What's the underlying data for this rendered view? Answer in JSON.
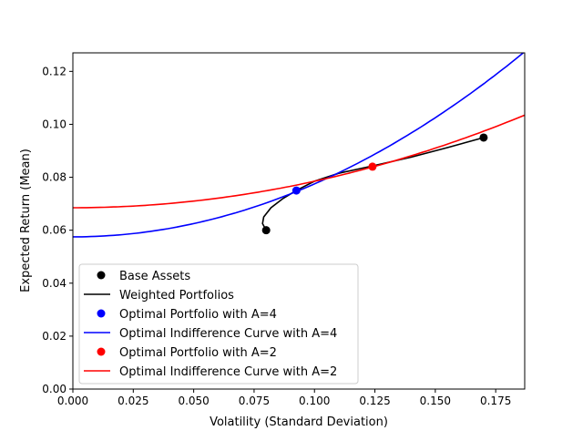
{
  "chart_data": {
    "type": "line",
    "title": "",
    "xlabel": "Volatility (Standard Deviation)",
    "ylabel": "Expected Return (Mean)",
    "xlim": [
      0.0,
      0.187
    ],
    "ylim": [
      0.0,
      0.127
    ],
    "xticks": [
      "0.000",
      "0.025",
      "0.050",
      "0.075",
      "0.100",
      "0.125",
      "0.150",
      "0.175"
    ],
    "yticks": [
      "0.00",
      "0.02",
      "0.04",
      "0.06",
      "0.08",
      "0.10",
      "0.12"
    ],
    "grid": false,
    "legend_position": "lower left",
    "series": [
      {
        "name": "Base Assets",
        "kind": "scatter",
        "color": "#000000",
        "points": [
          [
            0.08,
            0.06
          ],
          [
            0.17,
            0.095
          ]
        ]
      },
      {
        "name": "Weighted Portfolios",
        "kind": "line",
        "color": "#000000",
        "points": [
          [
            0.08,
            0.06
          ],
          [
            0.0785,
            0.0625
          ],
          [
            0.079,
            0.065
          ],
          [
            0.082,
            0.0685
          ],
          [
            0.087,
            0.072
          ],
          [
            0.0925,
            0.075
          ],
          [
            0.1,
            0.0785
          ],
          [
            0.11,
            0.0815
          ],
          [
            0.124,
            0.0843
          ],
          [
            0.14,
            0.0876
          ],
          [
            0.155,
            0.0912
          ],
          [
            0.17,
            0.095
          ]
        ]
      },
      {
        "name": "Optimal Portfolio with A=4",
        "kind": "scatter",
        "color": "#0000ff",
        "points": [
          [
            0.0925,
            0.075
          ]
        ]
      },
      {
        "name": "Optimal Indifference Curve with A=4",
        "kind": "line",
        "color": "#0000ff",
        "intercept": 0.0575,
        "coef": 2.0
      },
      {
        "name": "Optimal Portfolio with A=2",
        "kind": "scatter",
        "color": "#ff0000",
        "points": [
          [
            0.124,
            0.084
          ]
        ]
      },
      {
        "name": "Optimal Indifference Curve with A=2",
        "kind": "line",
        "color": "#ff0000",
        "intercept": 0.0685,
        "coef": 1.0
      }
    ]
  }
}
